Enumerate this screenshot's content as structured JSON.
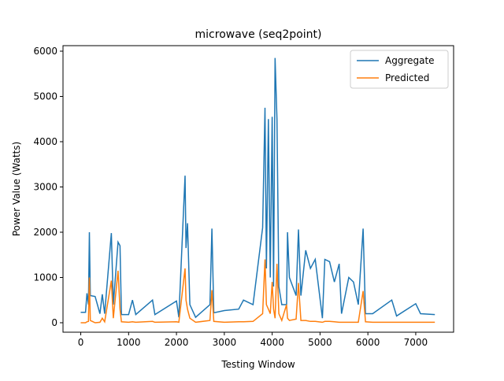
{
  "chart_data": {
    "type": "line",
    "title": "microwave (seq2point)",
    "x_label": "Testing Window",
    "y_label": "Power Value (Watts)",
    "x": [
      0,
      100,
      130,
      160,
      180,
      200,
      300,
      400,
      450,
      500,
      640,
      680,
      780,
      820,
      850,
      1000,
      1080,
      1150,
      1500,
      1550,
      2000,
      2050,
      2180,
      2200,
      2230,
      2280,
      2400,
      2700,
      2740,
      2780,
      3000,
      3300,
      3400,
      3600,
      3800,
      3850,
      3880,
      3920,
      3960,
      4000,
      4030,
      4060,
      4100,
      4140,
      4200,
      4300,
      4320,
      4360,
      4500,
      4550,
      4600,
      4700,
      4800,
      4900,
      5050,
      5100,
      5200,
      5300,
      5400,
      5450,
      5600,
      5700,
      5800,
      5900,
      5950,
      6100,
      6500,
      6600,
      7000,
      7100,
      7400
    ],
    "series": [
      {
        "name": "Aggregate",
        "color": "#1f77b4",
        "values": [
          230,
          230,
          650,
          400,
          2000,
          600,
          580,
          200,
          630,
          200,
          1980,
          400,
          1780,
          1700,
          180,
          180,
          500,
          180,
          500,
          180,
          480,
          120,
          3250,
          1650,
          2200,
          400,
          120,
          400,
          2080,
          220,
          270,
          300,
          500,
          400,
          2100,
          4750,
          1200,
          4500,
          1000,
          4550,
          800,
          5850,
          4500,
          800,
          400,
          400,
          2000,
          1000,
          600,
          2060,
          600,
          1600,
          1200,
          1400,
          100,
          1400,
          1350,
          900,
          1300,
          200,
          1000,
          900,
          400,
          2080,
          200,
          200,
          500,
          150,
          420,
          200,
          180
        ]
      },
      {
        "name": "Predicted",
        "color": "#ff7f0e",
        "values": [
          0,
          0,
          20,
          30,
          1000,
          50,
          0,
          10,
          100,
          20,
          930,
          100,
          1150,
          300,
          20,
          10,
          20,
          10,
          30,
          10,
          20,
          10,
          1200,
          500,
          300,
          100,
          10,
          50,
          720,
          30,
          10,
          20,
          20,
          30,
          200,
          1400,
          400,
          300,
          200,
          900,
          300,
          100,
          1300,
          200,
          50,
          400,
          100,
          50,
          80,
          880,
          50,
          50,
          30,
          30,
          10,
          30,
          30,
          20,
          10,
          10,
          10,
          10,
          10,
          700,
          20,
          10,
          10,
          10,
          10,
          10,
          10
        ]
      }
    ],
    "xlim": [
      -371,
      7791
    ],
    "ylim": [
      -209,
      6122
    ],
    "xticks": [
      0,
      1000,
      2000,
      3000,
      4000,
      5000,
      6000,
      7000
    ],
    "yticks": [
      0,
      1000,
      2000,
      3000,
      4000,
      5000,
      6000
    ],
    "legend": "upper right"
  }
}
